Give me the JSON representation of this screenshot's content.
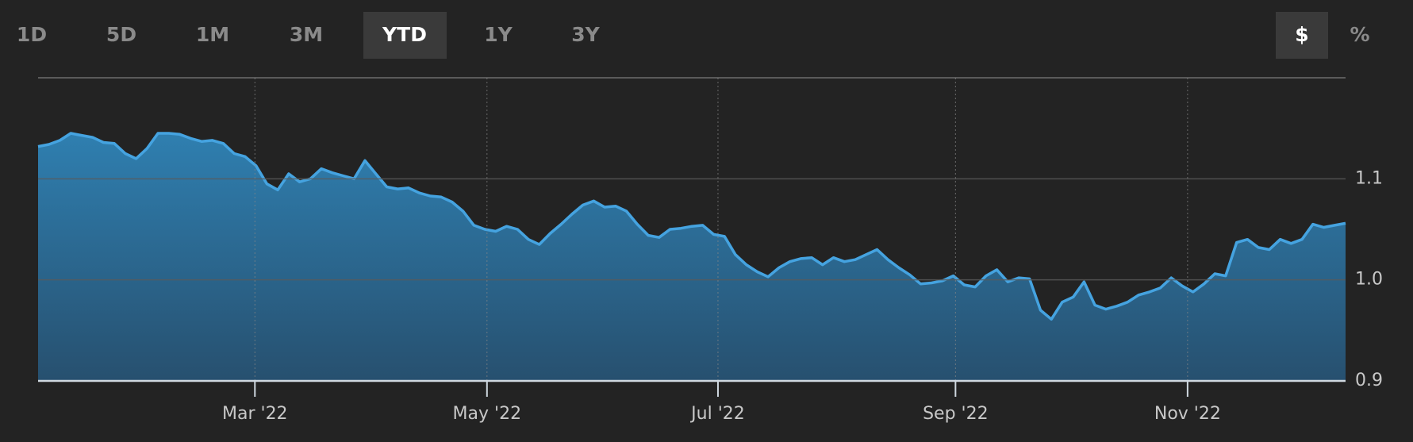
{
  "controls": {
    "ranges": [
      "1D",
      "5D",
      "1M",
      "3M",
      "YTD",
      "1Y",
      "3Y"
    ],
    "active_range": 4,
    "units": [
      "$",
      "%"
    ],
    "active_unit": 0
  },
  "chart_data": {
    "type": "area",
    "color": "#45a3e0",
    "fill_top": "#2f7fb0",
    "fill_bottom": "#27506f",
    "grid": true,
    "xlim": [
      0,
      120
    ],
    "ylim": [
      0.9,
      1.2
    ],
    "yticks": [
      0.9,
      {
        "value": 1,
        "label": "1.0"
      },
      1.1
    ],
    "xticks": [
      {
        "value": 19.9,
        "label": "Mar '22"
      },
      {
        "value": 41.2,
        "label": "May '22"
      },
      {
        "value": 62.4,
        "label": "Jul '22"
      },
      {
        "value": 84.2,
        "label": "Sep '22"
      },
      {
        "value": 105.5,
        "label": "Nov '22"
      }
    ],
    "values": [
      1.132,
      1.134,
      1.138,
      1.145,
      1.143,
      1.141,
      1.136,
      1.135,
      1.125,
      1.12,
      1.13,
      1.145,
      1.145,
      1.144,
      1.14,
      1.137,
      1.138,
      1.135,
      1.125,
      1.122,
      1.113,
      1.095,
      1.089,
      1.105,
      1.097,
      1.1,
      1.11,
      1.106,
      1.103,
      1.1,
      1.118,
      1.105,
      1.092,
      1.09,
      1.091,
      1.086,
      1.083,
      1.082,
      1.077,
      1.068,
      1.054,
      1.05,
      1.048,
      1.053,
      1.05,
      1.04,
      1.035,
      1.046,
      1.055,
      1.065,
      1.074,
      1.078,
      1.072,
      1.073,
      1.068,
      1.055,
      1.044,
      1.042,
      1.05,
      1.051,
      1.053,
      1.054,
      1.045,
      1.043,
      1.025,
      1.015,
      1.008,
      1.003,
      1.012,
      1.018,
      1.021,
      1.022,
      1.015,
      1.022,
      1.018,
      1.02,
      1.025,
      1.03,
      1.02,
      1.012,
      1.005,
      0.996,
      0.997,
      0.999,
      1.004,
      0.995,
      0.993,
      1.004,
      1.01,
      0.998,
      1.002,
      1.001,
      0.97,
      0.961,
      0.978,
      0.983,
      0.998,
      0.975,
      0.971,
      0.974,
      0.978,
      0.985,
      0.988,
      0.992,
      1.002,
      0.994,
      0.988,
      0.996,
      1.006,
      1.004,
      1.037,
      1.04,
      1.032,
      1.03,
      1.04,
      1.036,
      1.04,
      1.055,
      1.052,
      1.054,
      1.056
    ]
  }
}
